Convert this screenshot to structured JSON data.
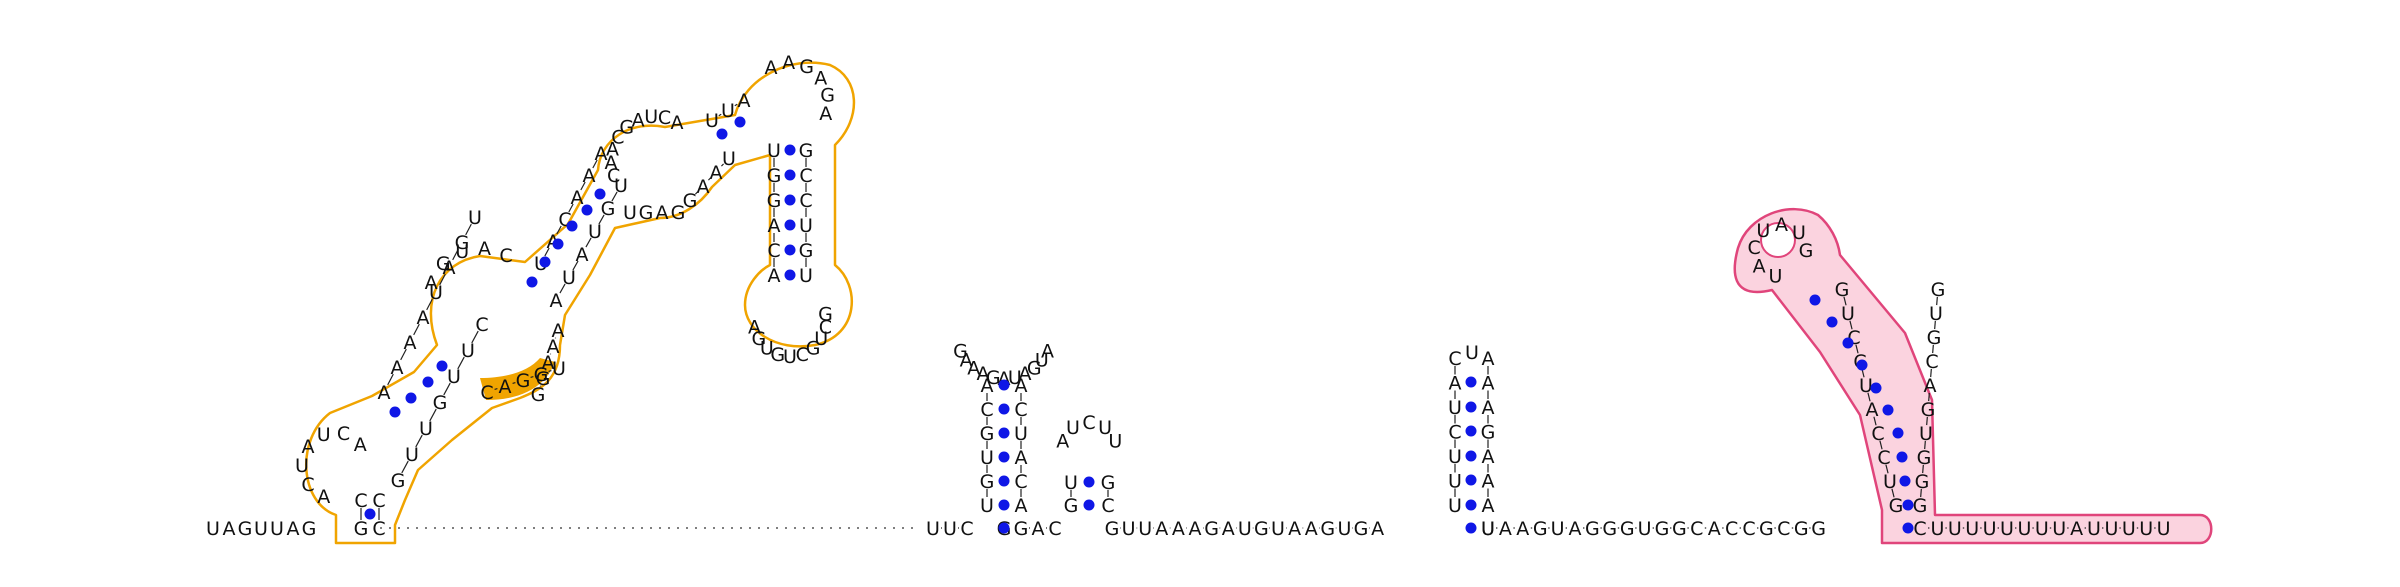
{
  "diagram": {
    "type": "rna-secondary-structure",
    "sequence_prefix": "UAGUUAG",
    "unpaired_linker": "UUC",
    "hairpin_2_strand": "GAC",
    "linker_2": "GUUAAAGAUGUAAGUGA",
    "linker_3": "UAAGUAGGGUGGCACCGCGG",
    "tail": "CUUUUUUUUAUUUUU",
    "highlight_colors": {
      "orange_outline": "#f0a400",
      "orange_fill": "#f0a400",
      "pink_outline": "#e0457b",
      "pink_fill": "#fbd3df",
      "base_pair_dot": "#0f17e6"
    },
    "elements": [
      {
        "name": "orange-domain",
        "label": ""
      },
      {
        "name": "hairpin-1",
        "label": ""
      },
      {
        "name": "hairpin-2",
        "label": ""
      },
      {
        "name": "hairpin-3",
        "label": ""
      },
      {
        "name": "pink-terminator",
        "label": ""
      }
    ]
  }
}
